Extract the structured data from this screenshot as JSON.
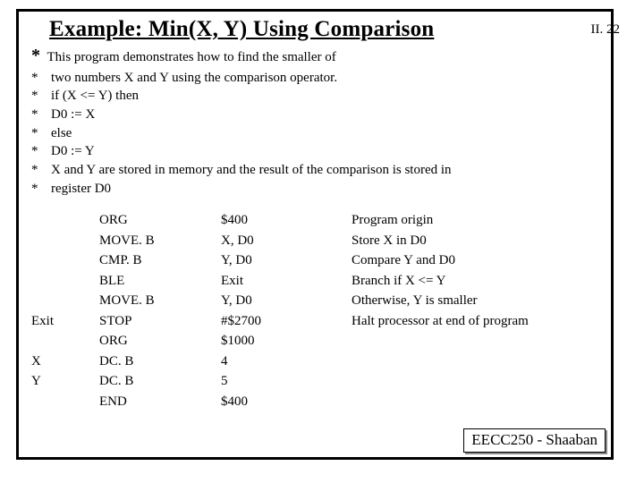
{
  "header": {
    "title": "Example:  Min(X, Y) Using Comparison",
    "page_num": "II. 22"
  },
  "comments": {
    "first": "This program demonstrates how to find the smaller of",
    "lines": [
      "two numbers X and Y using the comparison operator.",
      "  if (X <= Y) then",
      "    D0 := X",
      "  else",
      "    D0 := Y",
      "  X and Y are stored in memory and the result of   the comparison is stored in",
      "  register D0"
    ]
  },
  "code": [
    {
      "label": "",
      "op": "ORG",
      "arg": "$400",
      "cmt": "Program origin"
    },
    {
      "label": "",
      "op": "MOVE. B",
      "arg": "X, D0",
      "cmt": "Store X in D0"
    },
    {
      "label": "",
      "op": "CMP. B",
      "arg": "Y, D0",
      "cmt": "Compare Y and D0"
    },
    {
      "label": "",
      "op": "BLE",
      "arg": "Exit",
      "cmt": "Branch if X <= Y"
    },
    {
      "label": "",
      "op": "MOVE. B",
      "arg": "Y, D0",
      "cmt": "Otherwise, Y is smaller"
    },
    {
      "label": "Exit",
      "op": "STOP",
      "arg": " #$2700",
      "cmt": "Halt processor at end of program"
    },
    {
      "label": "",
      "op": "ORG",
      "arg": " $1000",
      "cmt": ""
    },
    {
      "label": "X",
      "op": "DC. B",
      "arg": "4",
      "cmt": ""
    },
    {
      "label": "Y",
      "op": "DC. B",
      "arg": "5",
      "cmt": ""
    },
    {
      "label": "",
      "op": "END",
      "arg": "$400",
      "cmt": ""
    }
  ],
  "footer": "EECC250 - Shaaban"
}
